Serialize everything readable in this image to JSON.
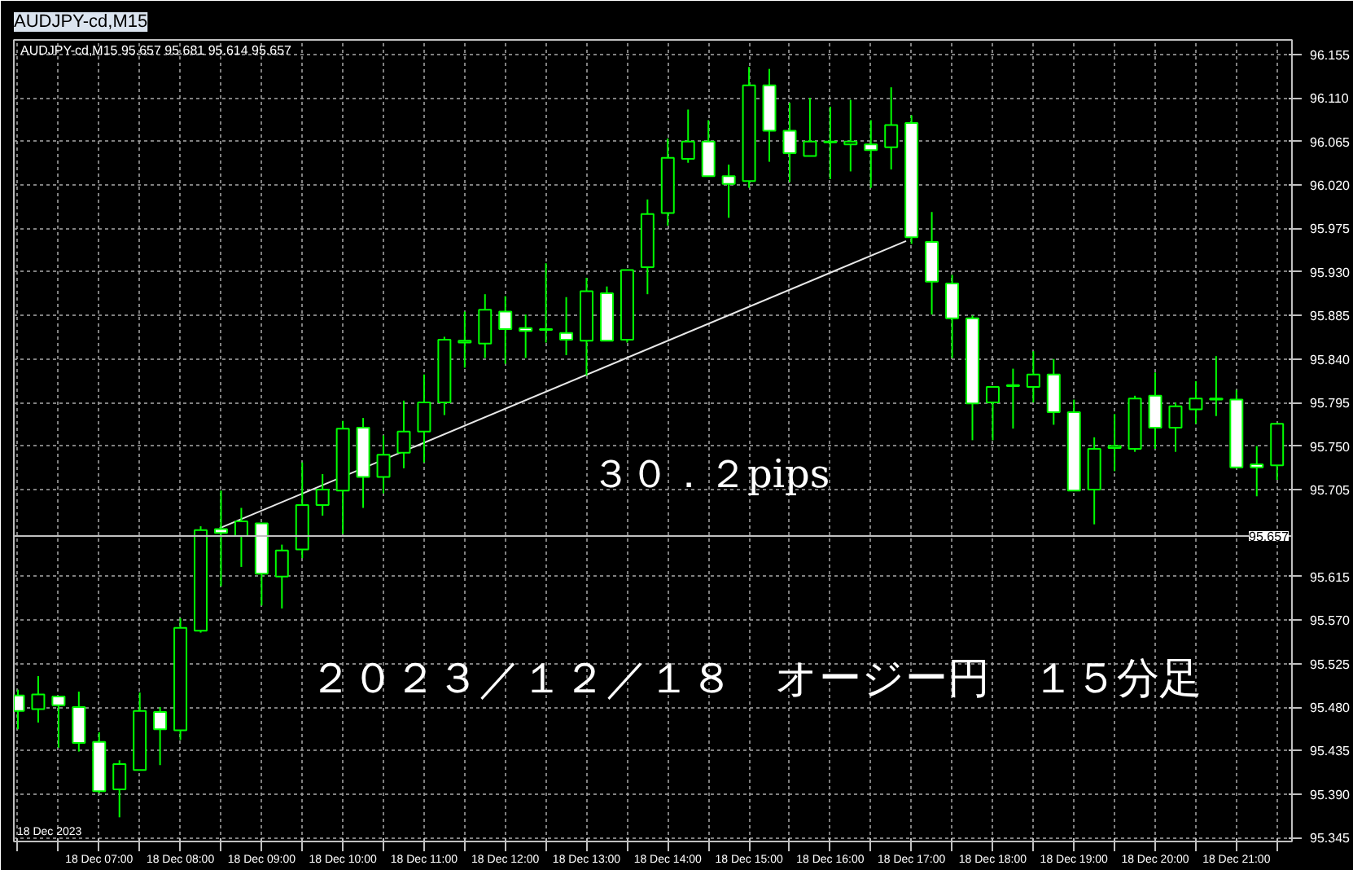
{
  "chart_data": {
    "type": "candlestick",
    "title": "AUDJPY-cd,M15",
    "subtitle": "AUDJPY-cd,M15  95.657 95.681 95.614 95.657",
    "annotations": [
      "３０．２pips",
      "２０２３／１２／１８　オージー円　１５分足",
      "18 Dec 2023"
    ],
    "color": "#00ff00",
    "x": [
      "2023-12-18T06:00",
      "2023-12-18T06:15",
      "2023-12-18T06:30",
      "2023-12-18T06:45",
      "2023-12-18T07:00",
      "2023-12-18T07:15",
      "2023-12-18T07:30",
      "2023-12-18T07:45",
      "2023-12-18T08:00",
      "2023-12-18T08:15",
      "2023-12-18T08:30",
      "2023-12-18T08:45",
      "2023-12-18T09:00",
      "2023-12-18T09:15",
      "2023-12-18T09:30",
      "2023-12-18T09:45",
      "2023-12-18T10:00",
      "2023-12-18T10:15",
      "2023-12-18T10:30",
      "2023-12-18T10:45",
      "2023-12-18T11:00",
      "2023-12-18T11:15",
      "2023-12-18T11:30",
      "2023-12-18T11:45",
      "2023-12-18T12:00",
      "2023-12-18T12:15",
      "2023-12-18T12:30",
      "2023-12-18T12:45",
      "2023-12-18T13:00",
      "2023-12-18T13:15",
      "2023-12-18T13:30",
      "2023-12-18T13:45",
      "2023-12-18T14:00",
      "2023-12-18T14:15",
      "2023-12-18T14:30",
      "2023-12-18T14:45",
      "2023-12-18T15:00",
      "2023-12-18T15:15",
      "2023-12-18T15:30",
      "2023-12-18T15:45",
      "2023-12-18T16:00",
      "2023-12-18T16:15",
      "2023-12-18T16:30",
      "2023-12-18T16:45",
      "2023-12-18T17:00",
      "2023-12-18T17:15",
      "2023-12-18T17:30",
      "2023-12-18T17:45",
      "2023-12-18T18:00",
      "2023-12-18T18:15",
      "2023-12-18T18:30",
      "2023-12-18T18:45",
      "2023-12-18T19:00",
      "2023-12-18T19:15",
      "2023-12-18T19:30",
      "2023-12-18T19:45",
      "2023-12-18T20:00",
      "2023-12-18T20:15",
      "2023-12-18T20:30",
      "2023-12-18T20:45",
      "2023-12-18T21:00",
      "2023-12-18T21:15",
      "2023-12-18T21:30"
    ],
    "ohlc": [
      [
        95.492,
        95.498,
        95.457,
        95.476
      ],
      [
        95.478,
        95.512,
        95.464,
        95.493
      ],
      [
        95.491,
        95.491,
        95.438,
        95.482
      ],
      [
        95.48,
        95.496,
        95.434,
        95.443
      ],
      [
        95.444,
        95.454,
        95.391,
        95.393
      ],
      [
        95.395,
        95.425,
        95.366,
        95.421
      ],
      [
        95.415,
        95.495,
        95.415,
        95.476
      ],
      [
        95.475,
        95.48,
        95.42,
        95.457
      ],
      [
        95.456,
        95.572,
        95.446,
        95.562
      ],
      [
        95.559,
        95.667,
        95.557,
        95.663
      ],
      [
        95.664,
        95.704,
        95.605,
        95.66
      ],
      [
        95.657,
        95.686,
        95.625,
        95.672
      ],
      [
        95.67,
        95.67,
        95.585,
        95.618
      ],
      [
        95.615,
        95.648,
        95.582,
        95.642
      ],
      [
        95.643,
        95.733,
        95.634,
        95.689
      ],
      [
        95.689,
        95.721,
        95.678,
        95.705
      ],
      [
        95.704,
        95.776,
        95.659,
        95.768
      ],
      [
        95.769,
        95.779,
        95.686,
        95.718
      ],
      [
        95.718,
        95.761,
        95.701,
        95.741
      ],
      [
        95.743,
        95.797,
        95.727,
        95.765
      ],
      [
        95.765,
        95.824,
        95.733,
        95.795
      ],
      [
        95.795,
        95.863,
        95.782,
        95.86
      ],
      [
        95.857,
        95.889,
        95.831,
        95.859
      ],
      [
        95.856,
        95.907,
        95.841,
        95.891
      ],
      [
        95.889,
        95.905,
        95.835,
        95.871
      ],
      [
        95.872,
        95.886,
        95.841,
        95.869
      ],
      [
        95.871,
        95.939,
        95.857,
        95.87
      ],
      [
        95.867,
        95.904,
        95.844,
        95.86
      ],
      [
        95.859,
        95.924,
        95.823,
        95.91
      ],
      [
        95.908,
        95.915,
        95.859,
        95.859
      ],
      [
        95.86,
        95.932,
        95.857,
        95.932
      ],
      [
        95.935,
        96.005,
        95.907,
        95.99
      ],
      [
        95.991,
        96.068,
        95.978,
        96.048
      ],
      [
        96.047,
        96.098,
        96.043,
        96.065
      ],
      [
        96.065,
        96.087,
        96.029,
        96.029
      ],
      [
        96.029,
        96.041,
        95.986,
        96.021
      ],
      [
        96.024,
        96.142,
        96.017,
        96.123
      ],
      [
        96.123,
        96.14,
        96.044,
        96.076
      ],
      [
        96.076,
        96.105,
        96.023,
        96.053
      ],
      [
        96.05,
        96.11,
        96.05,
        96.065
      ],
      [
        96.064,
        96.101,
        96.026,
        96.065
      ],
      [
        96.062,
        96.108,
        96.034,
        96.065
      ],
      [
        96.062,
        96.087,
        96.017,
        96.056
      ],
      [
        96.059,
        96.121,
        96.036,
        96.082
      ],
      [
        96.084,
        96.092,
        95.959,
        95.966
      ],
      [
        95.961,
        95.992,
        95.886,
        95.92
      ],
      [
        95.918,
        95.927,
        95.841,
        95.882
      ],
      [
        95.882,
        95.885,
        95.756,
        95.794
      ],
      [
        95.795,
        95.811,
        95.756,
        95.811
      ],
      [
        95.812,
        95.83,
        95.768,
        95.813
      ],
      [
        95.811,
        95.848,
        95.795,
        95.824
      ],
      [
        95.824,
        95.84,
        95.772,
        95.785
      ],
      [
        95.785,
        95.798,
        95.704,
        95.704
      ],
      [
        95.705,
        95.759,
        95.669,
        95.747
      ],
      [
        95.748,
        95.783,
        95.724,
        95.75
      ],
      [
        95.747,
        95.802,
        95.744,
        95.799
      ],
      [
        95.802,
        95.826,
        95.747,
        95.769
      ],
      [
        95.769,
        95.795,
        95.744,
        95.791
      ],
      [
        95.788,
        95.817,
        95.773,
        95.799
      ],
      [
        95.798,
        95.843,
        95.781,
        95.799
      ],
      [
        95.798,
        95.808,
        95.727,
        95.728
      ],
      [
        95.731,
        95.75,
        95.698,
        95.728
      ],
      [
        95.73,
        95.773,
        95.715,
        95.773
      ]
    ],
    "series": [
      {
        "type": "line",
        "x": [
          "2023-12-18T08:29",
          "2023-12-18T16:56"
        ],
        "values": [
          95.665,
          95.962
        ],
        "color": "#e8e8e8"
      }
    ],
    "ref_lines": [
      {
        "axis": "y",
        "value": 95.657,
        "label": "95.657",
        "color": "#c0c0c0"
      }
    ],
    "xlim": [
      "2023-12-18T05:57",
      "2023-12-18T21:41"
    ],
    "xticks": [
      {
        "value": "2023-12-18T06:00",
        "label": null
      },
      {
        "value": "2023-12-18T06:30",
        "label": null
      },
      {
        "value": "2023-12-18T07:00",
        "label": "18 Dec 07:00"
      },
      {
        "value": "2023-12-18T07:30",
        "label": null
      },
      {
        "value": "2023-12-18T08:00",
        "label": "18 Dec 08:00"
      },
      {
        "value": "2023-12-18T08:30",
        "label": null
      },
      {
        "value": "2023-12-18T09:00",
        "label": "18 Dec 09:00"
      },
      {
        "value": "2023-12-18T09:30",
        "label": null
      },
      {
        "value": "2023-12-18T10:00",
        "label": "18 Dec 10:00"
      },
      {
        "value": "2023-12-18T10:30",
        "label": null
      },
      {
        "value": "2023-12-18T11:00",
        "label": "18 Dec 11:00"
      },
      {
        "value": "2023-12-18T11:30",
        "label": null
      },
      {
        "value": "2023-12-18T12:00",
        "label": "18 Dec 12:00"
      },
      {
        "value": "2023-12-18T12:30",
        "label": null
      },
      {
        "value": "2023-12-18T13:00",
        "label": "18 Dec 13:00"
      },
      {
        "value": "2023-12-18T13:30",
        "label": null
      },
      {
        "value": "2023-12-18T14:00",
        "label": "18 Dec 14:00"
      },
      {
        "value": "2023-12-18T14:30",
        "label": null
      },
      {
        "value": "2023-12-18T15:00",
        "label": "18 Dec 15:00"
      },
      {
        "value": "2023-12-18T15:30",
        "label": null
      },
      {
        "value": "2023-12-18T16:00",
        "label": "18 Dec 16:00"
      },
      {
        "value": "2023-12-18T16:30",
        "label": null
      },
      {
        "value": "2023-12-18T17:00",
        "label": "18 Dec 17:00"
      },
      {
        "value": "2023-12-18T17:30",
        "label": null
      },
      {
        "value": "2023-12-18T18:00",
        "label": "18 Dec 18:00"
      },
      {
        "value": "2023-12-18T18:30",
        "label": null
      },
      {
        "value": "2023-12-18T19:00",
        "label": "18 Dec 19:00"
      },
      {
        "value": "2023-12-18T19:30",
        "label": null
      },
      {
        "value": "2023-12-18T20:00",
        "label": "18 Dec 20:00"
      },
      {
        "value": "2023-12-18T20:30",
        "label": null
      },
      {
        "value": "2023-12-18T21:00",
        "label": "18 Dec 21:00"
      },
      {
        "value": "2023-12-18T21:30",
        "label": null
      }
    ],
    "ylim": [
      95.341,
      96.17
    ],
    "yticks": [
      {
        "value": 96.155,
        "label": "96.155"
      },
      {
        "value": 96.11,
        "label": "96.110"
      },
      {
        "value": 96.065,
        "label": "96.065"
      },
      {
        "value": 96.02,
        "label": "96.020"
      },
      {
        "value": 95.975,
        "label": "95.975"
      },
      {
        "value": 95.93,
        "label": "95.930"
      },
      {
        "value": 95.885,
        "label": "95.885"
      },
      {
        "value": 95.84,
        "label": "95.840"
      },
      {
        "value": 95.795,
        "label": "95.795"
      },
      {
        "value": 95.75,
        "label": "95.750"
      },
      {
        "value": 95.705,
        "label": "95.705"
      },
      {
        "value": 95.615,
        "label": "95.615"
      },
      {
        "value": 95.57,
        "label": "95.570"
      },
      {
        "value": 95.525,
        "label": "95.525"
      },
      {
        "value": 95.48,
        "label": "95.480"
      },
      {
        "value": 95.435,
        "label": "95.435"
      },
      {
        "value": 95.39,
        "label": "95.390"
      },
      {
        "value": 95.345,
        "label": "95.345"
      }
    ],
    "grid": true
  }
}
